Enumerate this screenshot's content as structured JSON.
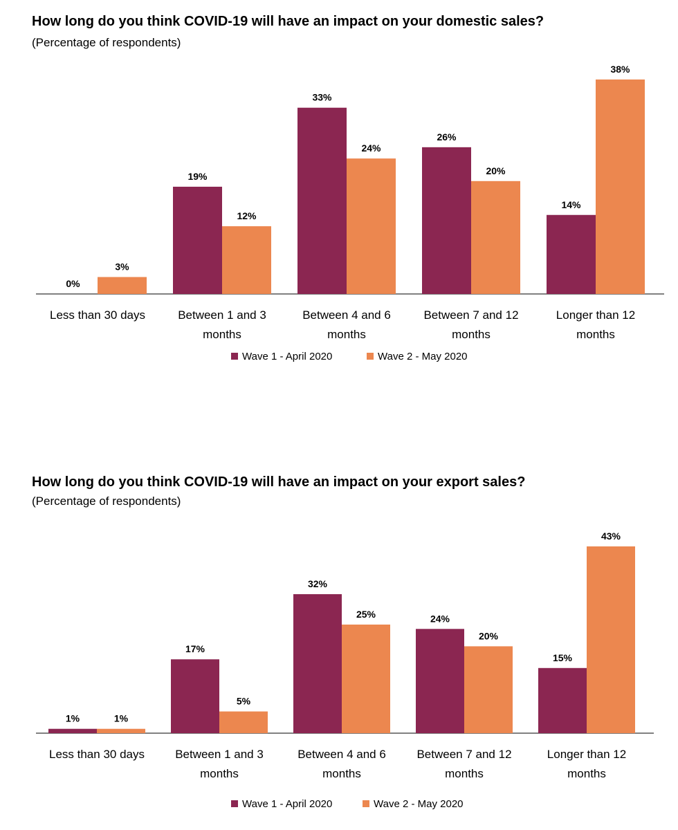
{
  "colors": {
    "wave1": "#8b2651",
    "wave2": "#ec874f",
    "axis": "#000000"
  },
  "chart_data": [
    {
      "type": "bar",
      "title": "How long do you think COVID-19 will have an impact on your domestic sales?",
      "subtitle": "(Percentage of respondents)",
      "categories": [
        [
          "Less than 30 days"
        ],
        [
          "Between 1 and 3",
          "months"
        ],
        [
          "Between 4 and 6",
          "months"
        ],
        [
          "Between 7 and 12",
          "months"
        ],
        [
          "Longer than 12",
          "months"
        ]
      ],
      "series": [
        {
          "name": "Wave 1 - April 2020",
          "values": [
            0,
            19,
            33,
            26,
            14
          ],
          "labels": [
            "0%",
            "19%",
            "33%",
            "26%",
            "14%"
          ]
        },
        {
          "name": "Wave 2 - May 2020",
          "values": [
            3,
            12,
            24,
            20,
            38
          ],
          "labels": [
            "3%",
            "12%",
            "24%",
            "20%",
            "38%"
          ]
        }
      ],
      "ylim": [
        0,
        40
      ],
      "legend": "bottom-center"
    },
    {
      "type": "bar",
      "title": "How long do you think COVID-19 will have an impact on your export sales?",
      "subtitle": "(Percentage of respondents)",
      "categories": [
        [
          "Less than 30 days"
        ],
        [
          "Between 1 and 3",
          "months"
        ],
        [
          "Between 4 and 6",
          "months"
        ],
        [
          "Between 7 and 12",
          "months"
        ],
        [
          "Longer than 12",
          "months"
        ]
      ],
      "series": [
        {
          "name": "Wave 1 - April 2020",
          "values": [
            1,
            17,
            32,
            24,
            15
          ],
          "labels": [
            "1%",
            "17%",
            "32%",
            "24%",
            "15%"
          ]
        },
        {
          "name": "Wave 2 - May 2020",
          "values": [
            1,
            5,
            25,
            20,
            43
          ],
          "labels": [
            "1%",
            "5%",
            "25%",
            "20%",
            "43%"
          ]
        }
      ],
      "ylim": [
        0,
        45
      ],
      "legend": "bottom-center"
    }
  ]
}
